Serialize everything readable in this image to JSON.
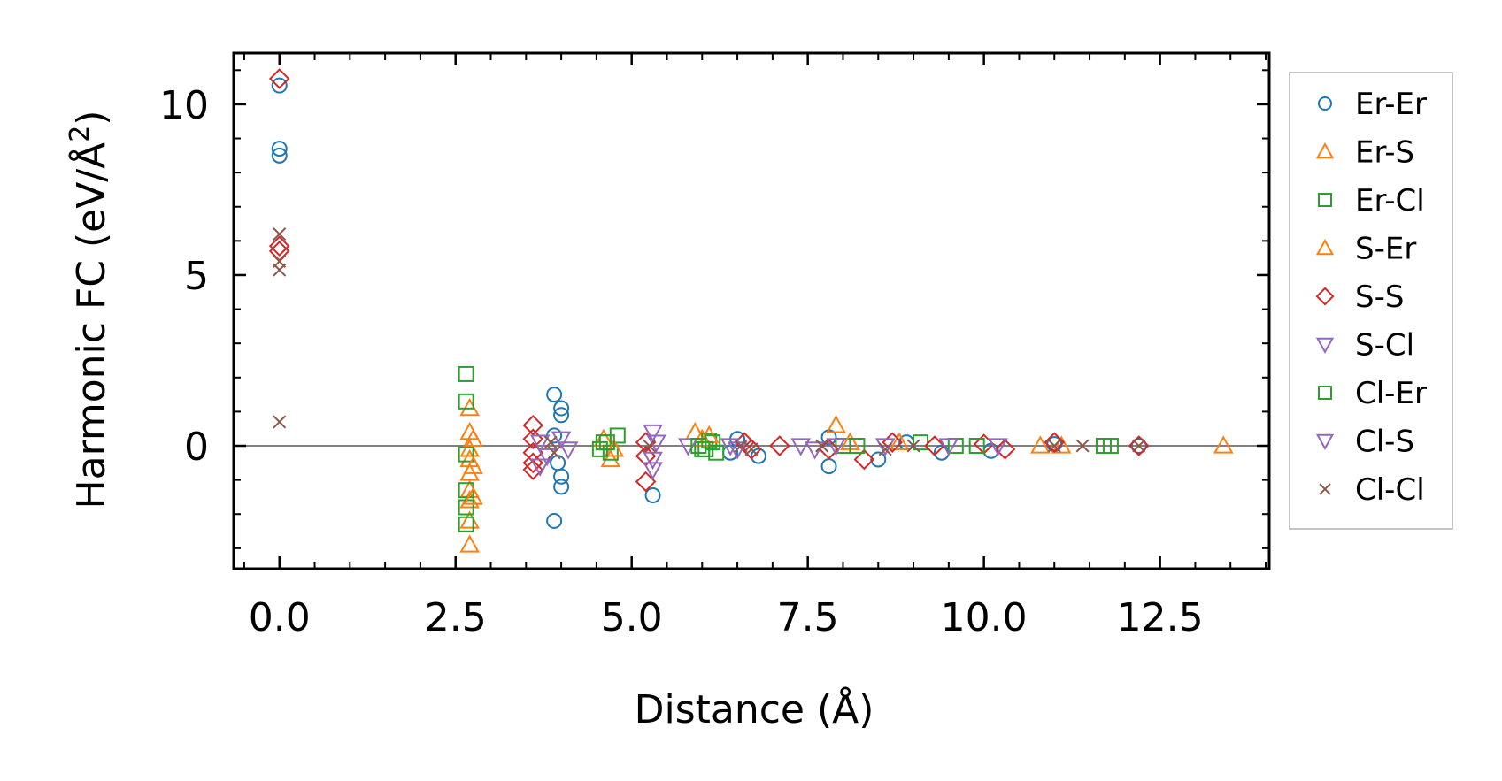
{
  "chart_data": {
    "type": "scatter",
    "xlabel": "Distance (Å)",
    "ylabel_main": "Harmonic FC (eV/Å",
    "ylabel_sup": "2",
    "ylabel_close": ")",
    "xlim": [
      -0.65,
      14.05
    ],
    "ylim": [
      -3.6,
      11.5
    ],
    "x_ticks": [
      0.0,
      2.5,
      5.0,
      7.5,
      10.0,
      12.5
    ],
    "x_tick_labels": [
      "0.0",
      "2.5",
      "5.0",
      "7.5",
      "10.0",
      "12.5"
    ],
    "y_ticks": [
      0,
      5,
      10
    ],
    "y_tick_labels": [
      "0",
      "5",
      "10"
    ],
    "zero_line": true,
    "grid": false,
    "legend_position": "outside-right",
    "series": [
      {
        "name": "Er-Er",
        "marker": "circle",
        "color": "#1f77b4",
        "points": [
          [
            0.0,
            10.55
          ],
          [
            0.0,
            8.7
          ],
          [
            0.0,
            8.5
          ],
          [
            3.9,
            1.5
          ],
          [
            4.0,
            1.1
          ],
          [
            4.0,
            0.9
          ],
          [
            3.9,
            0.3
          ],
          [
            3.95,
            -0.5
          ],
          [
            4.0,
            -0.9
          ],
          [
            4.0,
            -1.2
          ],
          [
            3.9,
            -2.2
          ],
          [
            5.3,
            -1.45
          ],
          [
            6.4,
            -0.2
          ],
          [
            6.5,
            0.2
          ],
          [
            6.8,
            -0.3
          ],
          [
            7.8,
            0.25
          ],
          [
            7.8,
            -0.6
          ],
          [
            8.5,
            -0.4
          ],
          [
            8.9,
            0.1
          ],
          [
            9.4,
            -0.2
          ],
          [
            10.1,
            -0.15
          ],
          [
            11.0,
            0.05
          ],
          [
            12.2,
            0.0
          ]
        ]
      },
      {
        "name": "Er-S",
        "marker": "triangle-up",
        "color": "#ff7f0e",
        "points": [
          [
            2.7,
            1.1
          ],
          [
            2.7,
            0.4
          ],
          [
            2.7,
            -0.1
          ],
          [
            2.7,
            -0.4
          ],
          [
            2.7,
            -0.8
          ],
          [
            2.7,
            -1.3
          ],
          [
            2.7,
            -1.6
          ],
          [
            2.7,
            -2.2
          ],
          [
            2.7,
            -2.9
          ],
          [
            4.6,
            0.2
          ],
          [
            4.7,
            -0.4
          ],
          [
            5.9,
            0.4
          ],
          [
            6.0,
            0.2
          ],
          [
            7.9,
            0.6
          ],
          [
            8.8,
            0.1
          ],
          [
            10.8,
            0.0
          ],
          [
            13.4,
            0.0
          ]
        ]
      },
      {
        "name": "Er-Cl",
        "marker": "square",
        "color": "#2ca02c",
        "points": [
          [
            2.65,
            2.1
          ],
          [
            2.65,
            1.3
          ],
          [
            2.65,
            -0.25
          ],
          [
            2.65,
            -1.3
          ],
          [
            2.65,
            -1.8
          ],
          [
            2.65,
            -2.3
          ],
          [
            4.6,
            0.1
          ],
          [
            4.7,
            -0.2
          ],
          [
            4.8,
            0.3
          ],
          [
            6.0,
            -0.1
          ],
          [
            6.1,
            0.15
          ],
          [
            6.2,
            -0.2
          ],
          [
            8.0,
            0.0
          ],
          [
            9.1,
            0.1
          ],
          [
            9.6,
            0.0
          ],
          [
            11.8,
            0.0
          ]
        ]
      },
      {
        "name": "S-Er",
        "marker": "triangle-up",
        "color": "#ff7f0e",
        "points": [
          [
            2.75,
            0.2
          ],
          [
            2.75,
            -0.6
          ],
          [
            2.75,
            -1.5
          ],
          [
            4.75,
            -0.1
          ],
          [
            6.1,
            0.3
          ],
          [
            8.1,
            0.1
          ],
          [
            11.1,
            0.0
          ]
        ]
      },
      {
        "name": "S-S",
        "marker": "diamond",
        "color": "#d62728",
        "points": [
          [
            0.0,
            10.75
          ],
          [
            0.0,
            5.85
          ],
          [
            0.0,
            5.7
          ],
          [
            3.6,
            0.6
          ],
          [
            3.6,
            0.2
          ],
          [
            3.6,
            -0.2
          ],
          [
            3.6,
            -0.5
          ],
          [
            3.6,
            -0.7
          ],
          [
            5.2,
            0.1
          ],
          [
            5.2,
            -0.3
          ],
          [
            5.2,
            -1.05
          ],
          [
            6.6,
            0.1
          ],
          [
            6.7,
            -0.1
          ],
          [
            7.1,
            0.0
          ],
          [
            7.8,
            -0.1
          ],
          [
            8.3,
            -0.4
          ],
          [
            8.7,
            0.1
          ],
          [
            9.3,
            0.0
          ],
          [
            10.0,
            0.05
          ],
          [
            10.3,
            -0.1
          ],
          [
            11.0,
            0.1
          ],
          [
            12.2,
            0.0
          ]
        ]
      },
      {
        "name": "S-Cl",
        "marker": "triangle-down",
        "color": "#9467bd",
        "points": [
          [
            3.7,
            0.1
          ],
          [
            3.8,
            -0.3
          ],
          [
            4.1,
            -0.1
          ],
          [
            5.3,
            0.4
          ],
          [
            5.3,
            -0.4
          ],
          [
            5.3,
            -0.7
          ],
          [
            5.8,
            0.0
          ],
          [
            6.5,
            -0.1
          ],
          [
            7.4,
            0.0
          ],
          [
            7.6,
            -0.1
          ],
          [
            8.6,
            0.0
          ],
          [
            9.5,
            0.0
          ]
        ]
      },
      {
        "name": "Cl-Er",
        "marker": "square",
        "color": "#2ca02c",
        "points": [
          [
            4.55,
            -0.1
          ],
          [
            4.65,
            0.1
          ],
          [
            5.95,
            0.0
          ],
          [
            6.05,
            -0.1
          ],
          [
            6.15,
            0.1
          ],
          [
            8.2,
            0.0
          ],
          [
            9.9,
            0.0
          ],
          [
            11.7,
            0.0
          ]
        ]
      },
      {
        "name": "Cl-S",
        "marker": "triangle-down",
        "color": "#9467bd",
        "points": [
          [
            3.7,
            -0.6
          ],
          [
            4.0,
            0.2
          ],
          [
            5.35,
            0.1
          ],
          [
            6.4,
            0.0
          ],
          [
            7.9,
            0.0
          ],
          [
            10.2,
            0.0
          ]
        ]
      },
      {
        "name": "Cl-Cl",
        "marker": "x",
        "color": "#8c564b",
        "points": [
          [
            0.0,
            6.2
          ],
          [
            0.0,
            5.4
          ],
          [
            0.0,
            5.15
          ],
          [
            0.0,
            0.7
          ],
          [
            3.85,
            0.1
          ],
          [
            3.9,
            -0.2
          ],
          [
            5.25,
            0.0
          ],
          [
            6.55,
            0.0
          ],
          [
            6.7,
            -0.1
          ],
          [
            7.7,
            0.0
          ],
          [
            8.6,
            -0.1
          ],
          [
            9.0,
            0.0
          ],
          [
            11.0,
            0.0
          ],
          [
            11.4,
            0.0
          ],
          [
            12.2,
            0.0
          ]
        ]
      }
    ]
  }
}
